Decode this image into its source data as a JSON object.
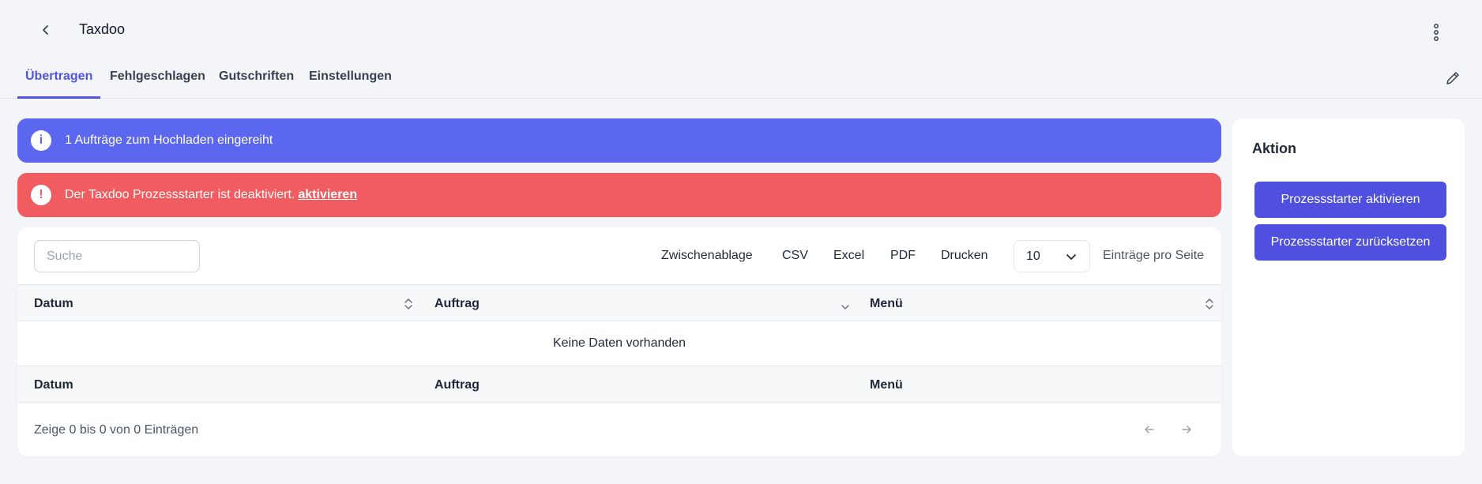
{
  "header": {
    "back_icon": "chevron-left-icon",
    "title": "Taxdoo",
    "menu_icon": "kebab-menu-icon"
  },
  "tabs": [
    {
      "label": "Übertragen",
      "active": true
    },
    {
      "label": "Fehlgeschlagen",
      "active": false
    },
    {
      "label": "Gutschriften",
      "active": false
    },
    {
      "label": "Einstellungen",
      "active": false
    }
  ],
  "edit_icon": "pencil-icon",
  "alerts": {
    "info": {
      "icon": "info-icon",
      "text": "1 Aufträge zum Hochladen eingereiht",
      "color": "#5b67ee"
    },
    "danger": {
      "icon": "exclamation-icon",
      "text": "Der Taxdoo Prozessstarter ist deaktiviert.",
      "link": "aktivieren",
      "color": "#f05c5f"
    }
  },
  "table": {
    "search_placeholder": "Suche",
    "export_buttons": [
      "Zwischenablage",
      "CSV",
      "Excel",
      "PDF",
      "Drucken"
    ],
    "page_size": "10",
    "page_size_label": "Einträge pro Seite",
    "columns": [
      "Datum",
      "Auftrag",
      "Menü"
    ],
    "empty_text": "Keine Daten vorhanden",
    "info": "Zeige 0 bis 0 von 0 Einträgen"
  },
  "sidebar": {
    "title": "Aktion",
    "buttons": [
      "Prozessstarter aktivieren",
      "Prozessstarter zurücksetzen"
    ]
  },
  "colors": {
    "accent": "#4f55e3",
    "button": "#4f4fe0",
    "background": "#f4f5f8"
  }
}
